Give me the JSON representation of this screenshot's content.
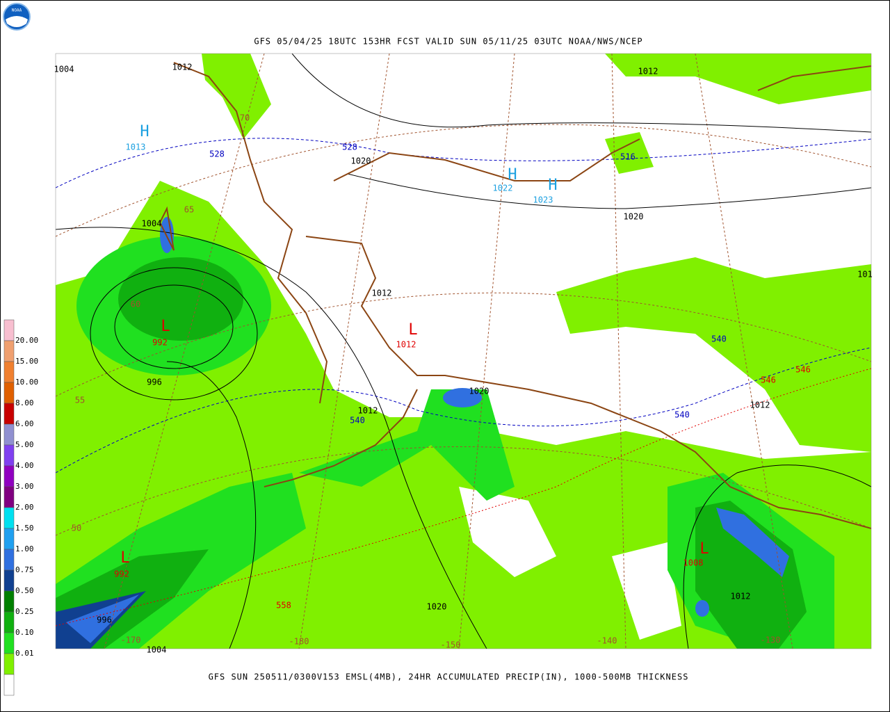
{
  "header": {
    "logo": "NOAA",
    "title": "GFS 05/04/25 18UTC 153HR FCST VALID SUN 05/11/25 03UTC NOAA/NWS/NCEP"
  },
  "footer": {
    "caption": "GFS SUN 250511/0300V153 EMSL(4MB), 24HR ACCUMULATED PRECIP(IN), 1000-500MB THICKNESS"
  },
  "legend": {
    "labels": [
      "20.00",
      "15.00",
      "10.00",
      "8.00",
      "6.00",
      "5.00",
      "4.00",
      "3.00",
      "2.00",
      "1.50",
      "1.00",
      "0.75",
      "0.50",
      "0.25",
      "0.10",
      "0.01"
    ],
    "colors": [
      "#f8bfd0",
      "#f0a070",
      "#f08030",
      "#e06000",
      "#c80000",
      "#9090d0",
      "#8040f0",
      "#9000c0",
      "#800080",
      "#00e0f0",
      "#20a0f0",
      "#3070e0",
      "#104090",
      "#008000",
      "#10b010",
      "#20e020",
      "#80f000"
    ]
  },
  "map_labels": [
    {
      "text": "1004",
      "color": "#000000"
    },
    {
      "text": "1012",
      "color": "#000000"
    },
    {
      "text": "1012",
      "color": "#000000"
    },
    {
      "text": "H",
      "color": "#1ca0e0"
    },
    {
      "text": "1013",
      "color": "#1ca0e0"
    },
    {
      "text": "528",
      "color": "#0000c0"
    },
    {
      "text": "528",
      "color": "#0000c0"
    },
    {
      "text": "1020",
      "color": "#000000"
    },
    {
      "text": "H",
      "color": "#1ca0e0"
    },
    {
      "text": "1022",
      "color": "#1ca0e0"
    },
    {
      "text": "H",
      "color": "#1ca0e0"
    },
    {
      "text": "1023",
      "color": "#1ca0e0"
    },
    {
      "text": "516",
      "color": "#0000c0"
    },
    {
      "text": "1020",
      "color": "#000000"
    },
    {
      "text": "1004",
      "color": "#000000"
    },
    {
      "text": "70",
      "color": "#a0522d"
    },
    {
      "text": "65",
      "color": "#a0522d"
    },
    {
      "text": "60",
      "color": "#a0522d"
    },
    {
      "text": "L",
      "color": "#e00000"
    },
    {
      "text": "992",
      "color": "#e00000"
    },
    {
      "text": "996",
      "color": "#000000"
    },
    {
      "text": "1012",
      "color": "#000000"
    },
    {
      "text": "L",
      "color": "#e00000"
    },
    {
      "text": "1012",
      "color": "#e00000"
    },
    {
      "text": "540",
      "color": "#0000c0"
    },
    {
      "text": "546",
      "color": "#e00000"
    },
    {
      "text": "546",
      "color": "#e00000"
    },
    {
      "text": "1012",
      "color": "#000000"
    },
    {
      "text": "540",
      "color": "#0000c0"
    },
    {
      "text": "1020",
      "color": "#000000"
    },
    {
      "text": "1012",
      "color": "#000000"
    },
    {
      "text": "540",
      "color": "#0000c0"
    },
    {
      "text": "55",
      "color": "#a0522d"
    },
    {
      "text": "50",
      "color": "#a0522d"
    },
    {
      "text": "L",
      "color": "#e00000"
    },
    {
      "text": "992",
      "color": "#e00000"
    },
    {
      "text": "996",
      "color": "#000000"
    },
    {
      "text": "558",
      "color": "#e00000"
    },
    {
      "text": "1020",
      "color": "#000000"
    },
    {
      "text": "101",
      "color": "#000000"
    },
    {
      "text": "L",
      "color": "#e00000"
    },
    {
      "text": "1008",
      "color": "#e00000"
    },
    {
      "text": "1012",
      "color": "#000000"
    },
    {
      "text": "-170",
      "color": "#a0522d"
    },
    {
      "text": "-180",
      "color": "#a0522d"
    },
    {
      "text": "-150",
      "color": "#a0522d"
    },
    {
      "text": "-140",
      "color": "#a0522d"
    },
    {
      "text": "-130",
      "color": "#a0522d"
    },
    {
      "text": "1004",
      "color": "#000000"
    }
  ]
}
